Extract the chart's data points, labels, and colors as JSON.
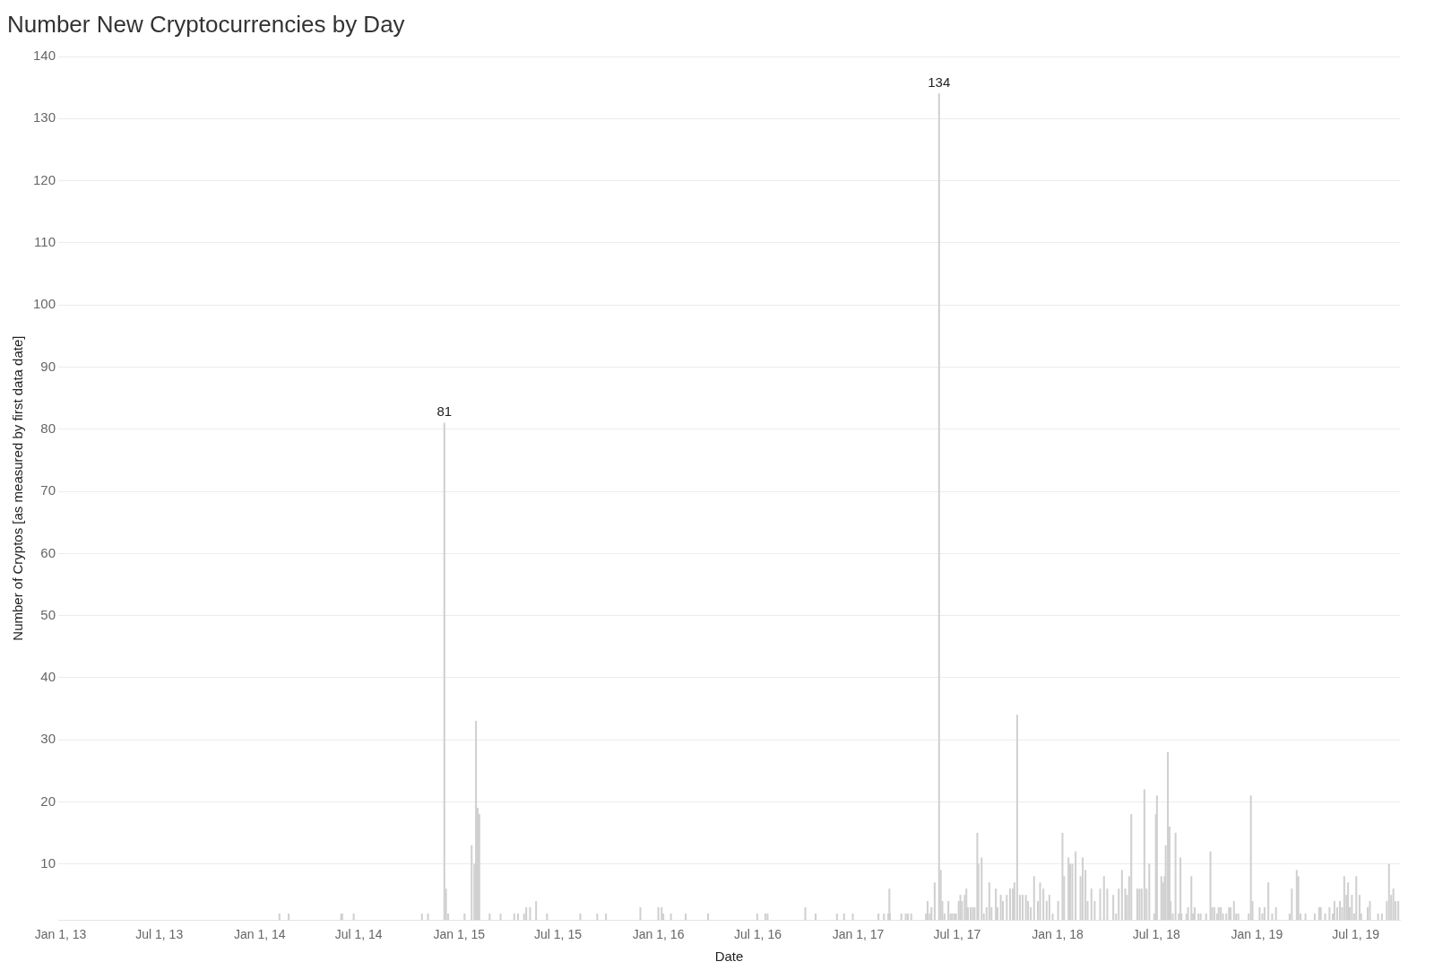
{
  "chart_data": {
    "type": "bar",
    "title": "Number New Cryptocurrencies by Day",
    "xlabel": "Date",
    "ylabel": "Number of Cryptos [as measured by first data date]",
    "color": "#d0d0d0",
    "x": [
      "2014-02-06",
      "2014-02-23",
      "2014-05-30",
      "2014-06-01",
      "2014-06-22",
      "2014-10-25",
      "2014-11-05",
      "2014-12-05",
      "2014-12-08",
      "2014-12-12",
      "2015-01-11",
      "2015-01-24",
      "2015-01-29",
      "2015-02-01",
      "2015-02-04",
      "2015-02-07",
      "2015-02-26",
      "2015-03-18",
      "2015-04-12",
      "2015-04-19",
      "2015-04-30",
      "2015-05-04",
      "2015-05-11",
      "2015-05-22",
      "2015-06-11",
      "2015-08-11",
      "2015-09-11",
      "2015-09-27",
      "2015-11-29",
      "2016-01-01",
      "2016-01-07",
      "2016-01-10",
      "2016-01-24",
      "2016-02-20",
      "2016-04-01",
      "2016-06-30",
      "2016-07-15",
      "2016-07-19",
      "2016-09-26",
      "2016-10-15",
      "2016-11-23",
      "2016-12-06",
      "2016-12-22",
      "2017-02-07",
      "2017-02-17",
      "2017-02-25",
      "2017-02-27",
      "2017-02-28",
      "2017-03-21",
      "2017-03-29",
      "2017-04-02",
      "2017-04-08",
      "2017-05-05",
      "2017-05-08",
      "2017-05-12",
      "2017-05-15",
      "2017-05-21",
      "2017-05-29",
      "2017-06-01",
      "2017-06-04",
      "2017-06-08",
      "2017-06-15",
      "2017-06-19",
      "2017-06-22",
      "2017-06-26",
      "2017-06-29",
      "2017-07-04",
      "2017-07-07",
      "2017-07-10",
      "2017-07-15",
      "2017-07-18",
      "2017-07-21",
      "2017-07-26",
      "2017-07-30",
      "2017-08-02",
      "2017-08-07",
      "2017-08-09",
      "2017-08-15",
      "2017-08-19",
      "2017-08-24",
      "2017-08-29",
      "2017-09-02",
      "2017-09-10",
      "2017-09-13",
      "2017-09-19",
      "2017-09-23",
      "2017-09-30",
      "2017-10-06",
      "2017-10-11",
      "2017-10-14",
      "2017-10-19",
      "2017-10-24",
      "2017-10-29",
      "2017-11-04",
      "2017-11-08",
      "2017-11-13",
      "2017-11-19",
      "2017-11-26",
      "2017-11-30",
      "2017-12-06",
      "2017-12-12",
      "2017-12-17",
      "2017-12-23",
      "2018-01-02",
      "2018-01-10",
      "2018-01-13",
      "2018-01-21",
      "2018-01-24",
      "2018-01-28",
      "2018-02-03",
      "2018-02-12",
      "2018-02-16",
      "2018-02-21",
      "2018-02-25",
      "2018-03-04",
      "2018-03-10",
      "2018-03-20",
      "2018-03-27",
      "2018-04-02",
      "2018-04-13",
      "2018-04-18",
      "2018-04-23",
      "2018-04-29",
      "2018-05-05",
      "2018-05-08",
      "2018-05-12",
      "2018-05-16",
      "2018-05-27",
      "2018-05-31",
      "2018-06-04",
      "2018-06-09",
      "2018-06-13",
      "2018-06-18",
      "2018-06-27",
      "2018-06-30",
      "2018-07-02",
      "2018-07-10",
      "2018-07-13",
      "2018-07-16",
      "2018-07-18",
      "2018-07-22",
      "2018-07-25",
      "2018-07-27",
      "2018-07-31",
      "2018-08-05",
      "2018-08-11",
      "2018-08-14",
      "2018-08-16",
      "2018-08-25",
      "2018-08-28",
      "2018-09-03",
      "2018-09-06",
      "2018-09-09",
      "2018-09-16",
      "2018-09-20",
      "2018-09-30",
      "2018-10-08",
      "2018-10-11",
      "2018-10-15",
      "2018-10-20",
      "2018-10-23",
      "2018-10-27",
      "2018-10-31",
      "2018-11-06",
      "2018-11-11",
      "2018-11-14",
      "2018-11-20",
      "2018-11-24",
      "2018-11-28",
      "2018-12-17",
      "2018-12-21",
      "2018-12-24",
      "2019-01-06",
      "2019-01-11",
      "2019-01-15",
      "2019-01-22",
      "2019-01-29",
      "2019-02-05",
      "2019-03-02",
      "2019-03-06",
      "2019-03-15",
      "2019-03-18",
      "2019-03-22",
      "2019-03-31",
      "2019-04-17",
      "2019-04-25",
      "2019-04-28",
      "2019-05-06",
      "2019-05-14",
      "2019-05-20",
      "2019-05-23",
      "2019-05-28",
      "2019-06-02",
      "2019-06-06",
      "2019-06-10",
      "2019-06-14",
      "2019-06-17",
      "2019-06-20",
      "2019-06-24",
      "2019-06-28",
      "2019-07-02",
      "2019-07-08",
      "2019-07-11",
      "2019-07-23",
      "2019-07-27",
      "2019-08-11",
      "2019-08-18",
      "2019-08-27",
      "2019-08-31",
      "2019-09-04",
      "2019-09-08",
      "2019-09-12",
      "2019-09-17"
    ],
    "values": [
      2,
      2,
      2,
      2,
      2,
      2,
      2,
      81,
      6,
      2,
      2,
      13,
      10,
      33,
      19,
      18,
      2,
      2,
      2,
      2,
      2,
      3,
      3,
      4,
      2,
      2,
      2,
      2,
      3,
      3,
      3,
      2,
      2,
      2,
      2,
      2,
      2,
      2,
      3,
      2,
      2,
      2,
      2,
      2,
      2,
      2,
      6,
      2,
      2,
      2,
      2,
      2,
      2,
      4,
      2,
      3,
      7,
      134,
      9,
      4,
      2,
      4,
      2,
      2,
      2,
      2,
      4,
      5,
      4,
      5,
      6,
      3,
      3,
      3,
      3,
      15,
      10,
      11,
      2,
      3,
      7,
      3,
      6,
      3,
      5,
      4,
      5,
      6,
      6,
      7,
      34,
      5,
      5,
      5,
      4,
      3,
      8,
      4,
      7,
      6,
      4,
      5,
      2,
      4,
      15,
      8,
      11,
      10,
      10,
      12,
      8,
      11,
      9,
      4,
      6,
      4,
      6,
      8,
      6,
      5,
      2,
      6,
      9,
      6,
      5,
      8,
      18,
      6,
      6,
      6,
      22,
      6,
      10,
      2,
      18,
      21,
      8,
      7,
      8,
      13,
      28,
      16,
      4,
      2,
      15,
      2,
      11,
      2,
      2,
      3,
      8,
      2,
      3,
      2,
      2,
      2,
      12,
      3,
      3,
      2,
      3,
      3,
      2,
      2,
      3,
      3,
      4,
      2,
      2,
      2,
      21,
      4,
      3,
      2,
      3,
      7,
      2,
      3,
      2,
      6,
      9,
      8,
      2,
      2,
      2,
      3,
      3,
      2,
      3,
      2,
      4,
      3,
      4,
      3,
      8,
      5,
      7,
      3,
      5,
      2,
      8,
      5,
      2,
      3,
      4,
      2,
      2,
      4,
      10,
      5,
      6,
      4,
      4
    ],
    "annotations": [
      {
        "text": "81",
        "x": "2014-12-05",
        "y": 81
      },
      {
        "text": "134",
        "x": "2017-05-29",
        "y": 134
      }
    ],
    "xlim": [
      "2012-12-28",
      "2019-09-20"
    ],
    "xticks": [
      {
        "value": "2013-01-01",
        "label": "Jan 1, 13"
      },
      {
        "value": "2013-07-01",
        "label": "Jul 1, 13"
      },
      {
        "value": "2014-01-01",
        "label": "Jan 1, 14"
      },
      {
        "value": "2014-07-01",
        "label": "Jul 1, 14"
      },
      {
        "value": "2015-01-01",
        "label": "Jan 1, 15"
      },
      {
        "value": "2015-07-01",
        "label": "Jul 1, 15"
      },
      {
        "value": "2016-01-01",
        "label": "Jan 1, 16"
      },
      {
        "value": "2016-07-01",
        "label": "Jul 1, 16"
      },
      {
        "value": "2017-01-01",
        "label": "Jan 1, 17"
      },
      {
        "value": "2017-07-01",
        "label": "Jul 1, 17"
      },
      {
        "value": "2018-01-01",
        "label": "Jan 1, 18"
      },
      {
        "value": "2018-07-01",
        "label": "Jul 1, 18"
      },
      {
        "value": "2019-01-01",
        "label": "Jan 1, 19"
      },
      {
        "value": "2019-07-01",
        "label": "Jul 1, 19"
      }
    ],
    "ylim": [
      1,
      140
    ],
    "yticks": [
      10,
      20,
      30,
      40,
      50,
      60,
      70,
      80,
      90,
      100,
      110,
      120,
      130,
      140
    ],
    "grid": "y",
    "legend": false
  }
}
